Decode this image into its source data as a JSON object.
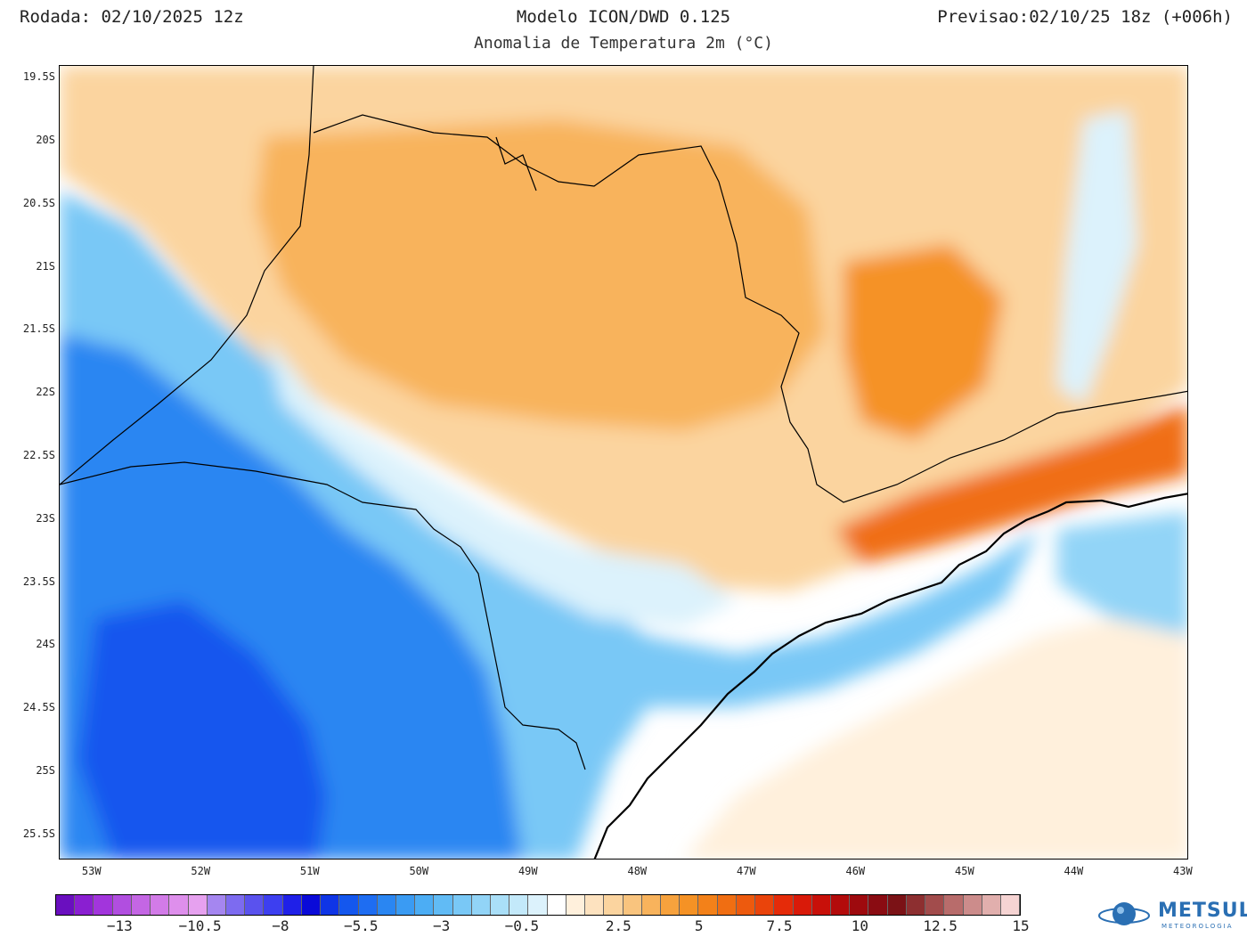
{
  "header": {
    "run": "Rodada: 02/10/2025 12z",
    "model": "Modelo ICON/DWD 0.125",
    "valid": "Previsao:02/10/25 18z (+006h)",
    "subtitle": "Anomalia de Temperatura 2m (°C)"
  },
  "map": {
    "lat_labels": [
      "19.5S",
      "20S",
      "20.5S",
      "21S",
      "21.5S",
      "22S",
      "22.5S",
      "23S",
      "23.5S",
      "24S",
      "24.5S",
      "25S",
      "25.5S"
    ],
    "lat_values": [
      -19.5,
      -20,
      -20.5,
      -21,
      -21.5,
      -22,
      -22.5,
      -23,
      -23.5,
      -24,
      -24.5,
      -25,
      -25.5
    ],
    "lon_labels": [
      "53W",
      "52W",
      "51W",
      "50W",
      "49W",
      "48W",
      "47W",
      "46W",
      "45W",
      "44W",
      "43W"
    ],
    "lon_values": [
      -53,
      -52,
      -51,
      -50,
      -49,
      -48,
      -47,
      -46,
      -45,
      -44,
      -43
    ],
    "anomaly_regions": [
      {
        "name": "cold-southwest",
        "value": -9
      },
      {
        "name": "cold-west",
        "value": -5
      },
      {
        "name": "cool-central-band",
        "value": -1.5
      },
      {
        "name": "warm-north",
        "value": 3.5
      },
      {
        "name": "warm-northeast",
        "value": 2
      },
      {
        "name": "hot-vale-do-paraiba",
        "value": 6
      },
      {
        "name": "ocean-neutral",
        "value": 0.5
      }
    ]
  },
  "colorbar": {
    "labels": [
      "−13",
      "−10.5",
      "−8",
      "−5.5",
      "−3",
      "−0.5",
      "2.5",
      "5",
      "7.5",
      "10",
      "12.5",
      "15"
    ],
    "label_values": [
      -13,
      -10.5,
      -8,
      -5.5,
      -3,
      -0.5,
      2.5,
      5,
      7.5,
      10,
      12.5,
      15
    ],
    "min": -15,
    "max": 15,
    "colors": [
      "#6a0fbf",
      "#8a1fd1",
      "#a235dc",
      "#b14ee0",
      "#c466e4",
      "#d27be8",
      "#de8fec",
      "#e6a1ef",
      "#a586f0",
      "#7d6bf0",
      "#5a52ee",
      "#3d3ff0",
      "#1f20e8",
      "#0a0ad8",
      "#0f35e6",
      "#1457ee",
      "#1e6df2",
      "#2a86f2",
      "#3a9bf3",
      "#4cadf4",
      "#61bbf5",
      "#79c8f6",
      "#92d4f7",
      "#aadff8",
      "#c3e9fa",
      "#dcf2fc",
      "#ffffff",
      "#fff0dc",
      "#fde2bf",
      "#fbd49f",
      "#f9c47e",
      "#f8b35c",
      "#f7a23d",
      "#f59225",
      "#f38119",
      "#f06e12",
      "#ed5a0e",
      "#ea440b",
      "#e52b09",
      "#d91a09",
      "#c81009",
      "#b30b0b",
      "#9e0a0e",
      "#8a0c12",
      "#7b1216",
      "#8d2f30",
      "#a24c4c",
      "#b86c6b",
      "#cc8c8b",
      "#e1afad",
      "#f6d4d3"
    ]
  },
  "logo": {
    "name": "METSUL",
    "subtitle": "METEOROLOGIA"
  }
}
